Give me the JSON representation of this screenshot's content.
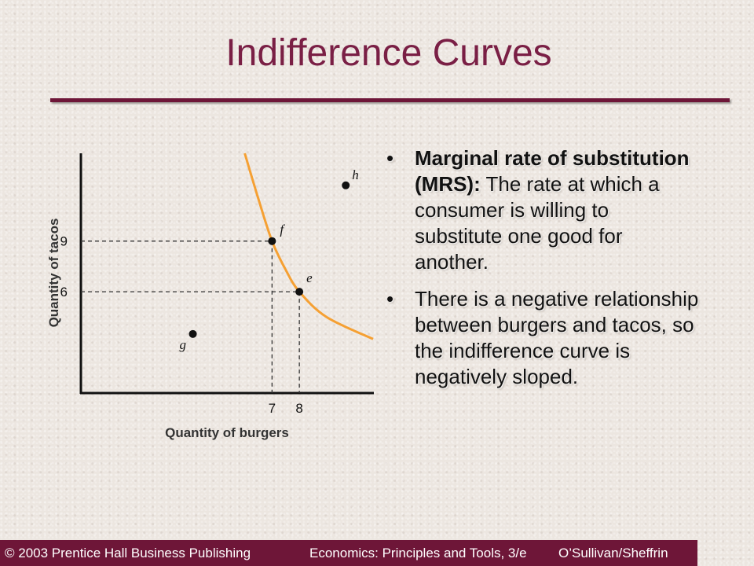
{
  "title": "Indifference Curves",
  "bullets": [
    {
      "bold": "Marginal rate of substitution (MRS):",
      "text": " The rate at which a consumer is willing to substitute one good for another."
    },
    {
      "bold": "",
      "text": "There is a negative relationship between burgers and tacos, so the indifference curve is negatively sloped."
    }
  ],
  "footer": {
    "copyright": "© 2003 Prentice Hall Business Publishing",
    "book": "Economics: Principles and Tools, 3/e",
    "authors": "O’Sullivan/Sheffrin"
  },
  "colors": {
    "title": "#7a1f45",
    "rule": "#6e1638",
    "footer_bg": "#6e1638",
    "curve": "#f5a033"
  },
  "chart_data": {
    "type": "scatter",
    "xlabel": "Quantity of burgers",
    "ylabel": "Quantity of tacos",
    "x_ticks": [
      7,
      8
    ],
    "y_ticks": [
      9,
      6
    ],
    "xlim": [
      0,
      10.7
    ],
    "ylim": [
      0,
      14.2
    ],
    "points": [
      {
        "label": "f",
        "x": 7,
        "y": 9
      },
      {
        "label": "e",
        "x": 8,
        "y": 6
      },
      {
        "label": "g",
        "x": 4.1,
        "y": 3.5
      },
      {
        "label": "h",
        "x": 9.7,
        "y": 12.3
      }
    ],
    "curve": [
      [
        6.0,
        14.2
      ],
      [
        6.5,
        11.5
      ],
      [
        7.0,
        9.0
      ],
      [
        7.5,
        7.3
      ],
      [
        8.0,
        6.0
      ],
      [
        9.0,
        4.5
      ],
      [
        10.7,
        3.2
      ]
    ],
    "grid": false
  }
}
